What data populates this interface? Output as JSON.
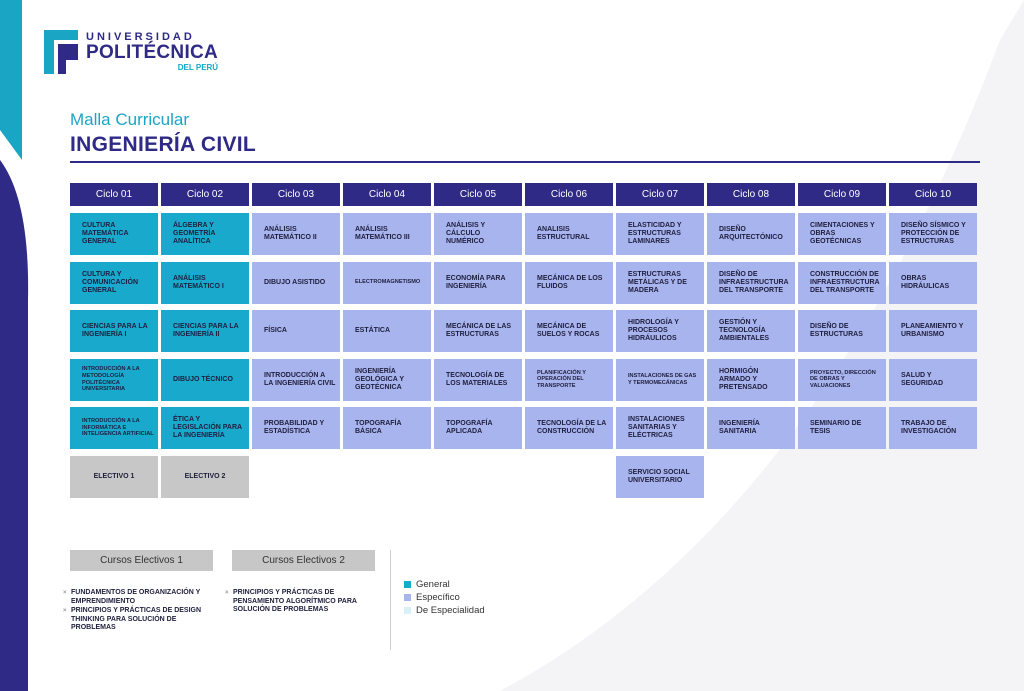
{
  "logo": {
    "line1": "UNIVERSIDAD",
    "line2": "POLITÉCNICA",
    "line3": "DEL PERÚ"
  },
  "header": {
    "subtitle": "Malla Curricular",
    "title": "INGENIERÍA CIVIL"
  },
  "colors": {
    "general": "#19a9cd",
    "especifico": "#a8b4ee",
    "especialidad": "#d9f1f6",
    "electivo": "#c7c7c7",
    "header": "#2e2a86"
  },
  "cycles": [
    {
      "label": "Ciclo 01",
      "courses": [
        {
          "name": "CULTURA MATEMÁTICA GENERAL",
          "type": "general"
        },
        {
          "name": "CULTURA Y COMUNICACIÓN GENERAL",
          "type": "general"
        },
        {
          "name": "CIENCIAS PARA LA INGENIERÍA I",
          "type": "general"
        },
        {
          "name": "INTRODUCCIÓN A LA METODOLOGÍA POLITÉCNICA UNIVERSITARIA",
          "type": "general",
          "small": true
        },
        {
          "name": "INTRODUCCIÓN A LA INFORMÁTICA E INTELIGENCIA ARTIFICIAL",
          "type": "general",
          "small": true
        },
        {
          "name": "ELECTIVO 1",
          "type": "electivo"
        }
      ]
    },
    {
      "label": "Ciclo 02",
      "courses": [
        {
          "name": "ÁLGEBRA Y GEOMETRÍA ANALÍTICA",
          "type": "general"
        },
        {
          "name": "ANÁLISIS MATEMÁTICO I",
          "type": "general"
        },
        {
          "name": "CIENCIAS PARA LA INGENIERÍA II",
          "type": "general"
        },
        {
          "name": "DIBUJO TÉCNICO",
          "type": "general"
        },
        {
          "name": "ÉTICA Y LEGISLACIÓN PARA LA INGENIERÍA",
          "type": "general"
        },
        {
          "name": "ELECTIVO 2",
          "type": "electivo"
        }
      ]
    },
    {
      "label": "Ciclo 03",
      "courses": [
        {
          "name": "ANÁLISIS MATEMÁTICO II",
          "type": "especifico"
        },
        {
          "name": "DIBUJO ASISTIDO",
          "type": "especifico"
        },
        {
          "name": "FÍSICA",
          "type": "especifico"
        },
        {
          "name": "INTRODUCCIÓN A LA INGENIERÍA CIVIL",
          "type": "especifico"
        },
        {
          "name": "PROBABILIDAD Y ESTADÍSTICA",
          "type": "especifico"
        }
      ]
    },
    {
      "label": "Ciclo 04",
      "courses": [
        {
          "name": "ANÁLISIS MATEMÁTICO III",
          "type": "especifico"
        },
        {
          "name": "ELECTROMAGNETISMO",
          "type": "especifico",
          "small": true
        },
        {
          "name": "ESTÁTICA",
          "type": "especifico"
        },
        {
          "name": "INGENIERÍA GEOLÓGICA Y GEOTÉCNICA",
          "type": "especifico"
        },
        {
          "name": "TOPOGRAFÍA BÁSICA",
          "type": "especifico"
        }
      ]
    },
    {
      "label": "Ciclo 05",
      "courses": [
        {
          "name": "ANÁLISIS Y CÁLCULO NUMÉRICO",
          "type": "especifico"
        },
        {
          "name": "ECONOMÍA PARA INGENIERÍA",
          "type": "especifico"
        },
        {
          "name": "MECÁNICA DE LAS ESTRUCTURAS",
          "type": "especifico"
        },
        {
          "name": "TECNOLOGÍA DE LOS MATERIALES",
          "type": "especifico"
        },
        {
          "name": "TOPOGRAFÍA APLICADA",
          "type": "especifico"
        }
      ]
    },
    {
      "label": "Ciclo 06",
      "courses": [
        {
          "name": "ANALISIS ESTRUCTURAL",
          "type": "especifico"
        },
        {
          "name": "MECÁNICA DE LOS FLUIDOS",
          "type": "especifico"
        },
        {
          "name": "MECÁNICA DE SUELOS Y ROCAS",
          "type": "especifico"
        },
        {
          "name": "PLANIFICACIÓN Y OPERACIÓN DEL TRANSPORTE",
          "type": "especifico",
          "small": true
        },
        {
          "name": "TECNOLOGÍA DE LA CONSTRUCCIÓN",
          "type": "especifico"
        }
      ]
    },
    {
      "label": "Ciclo 07",
      "courses": [
        {
          "name": "ELASTICIDAD Y ESTRUCTURAS LAMINARES",
          "type": "especifico"
        },
        {
          "name": "ESTRUCTURAS METÁLICAS Y DE MADERA",
          "type": "especifico"
        },
        {
          "name": "HIDROLOGÍA Y PROCESOS HIDRÁULICOS",
          "type": "especifico"
        },
        {
          "name": "INSTALACIONES DE GAS Y TERMOMECÁNICAS",
          "type": "especifico",
          "small": true
        },
        {
          "name": "INSTALACIONES SANITARIAS Y ELÉCTRICAS",
          "type": "especifico"
        },
        {
          "name": "SERVICIO SOCIAL UNIVERSITARIO",
          "type": "especifico"
        }
      ]
    },
    {
      "label": "Ciclo 08",
      "courses": [
        {
          "name": "DISEÑO ARQUITECTÓNICO",
          "type": "especifico"
        },
        {
          "name": "DISEÑO DE INFRAESTRUCTURA DEL TRANSPORTE",
          "type": "especifico"
        },
        {
          "name": "GESTIÓN Y TECNOLOGÍA AMBIENTALES",
          "type": "especifico"
        },
        {
          "name": "HORMIGÓN ARMADO Y PRETENSADO",
          "type": "especifico"
        },
        {
          "name": "INGENIERÍA SANITARIA",
          "type": "especifico"
        }
      ]
    },
    {
      "label": "Ciclo 09",
      "courses": [
        {
          "name": "CIMENTACIONES Y OBRAS GEOTÉCNICAS",
          "type": "especifico"
        },
        {
          "name": "CONSTRUCCIÓN DE INFRAESTRUCTURA DEL TRANSPORTE",
          "type": "especifico"
        },
        {
          "name": "DISEÑO DE ESTRUCTURAS",
          "type": "especifico"
        },
        {
          "name": "PROYECTO, DIRECCIÓN DE OBRAS Y VALUACIONES",
          "type": "especifico",
          "small": true
        },
        {
          "name": "SEMINARIO DE TESIS",
          "type": "especifico"
        }
      ]
    },
    {
      "label": "Ciclo 10",
      "courses": [
        {
          "name": "DISEÑO SÍSMICO Y PROTECCIÓN DE ESTRUCTURAS",
          "type": "especifico"
        },
        {
          "name": "OBRAS HIDRÁULICAS",
          "type": "especifico"
        },
        {
          "name": "PLANEAMIENTO Y URBANISMO",
          "type": "especifico"
        },
        {
          "name": "SALUD Y SEGURIDAD",
          "type": "especifico"
        },
        {
          "name": "TRABAJO DE INVESTIGACIÓN",
          "type": "especifico"
        }
      ]
    }
  ],
  "electives": [
    {
      "title": "Cursos Electivos 1",
      "items": [
        "FUNDAMENTOS DE ORGANIZACIÓN Y EMPRENDIMIENTO",
        "PRINCIPIOS Y PRÁCTICAS DE DESIGN THINKING PARA SOLUCIÓN DE PROBLEMAS"
      ]
    },
    {
      "title": "Cursos Electivos 2",
      "items": [
        "PRINCIPIOS Y PRÁCTICAS DE PENSAMIENTO ALGORÍTMICO PARA SOLUCIÓN DE PROBLEMAS"
      ]
    }
  ],
  "legend": [
    {
      "label": "General",
      "color": "#19a9cd"
    },
    {
      "label": "Específico",
      "color": "#a8b4ee"
    },
    {
      "label": "De Especialidad",
      "color": "#d9f1f6"
    }
  ]
}
